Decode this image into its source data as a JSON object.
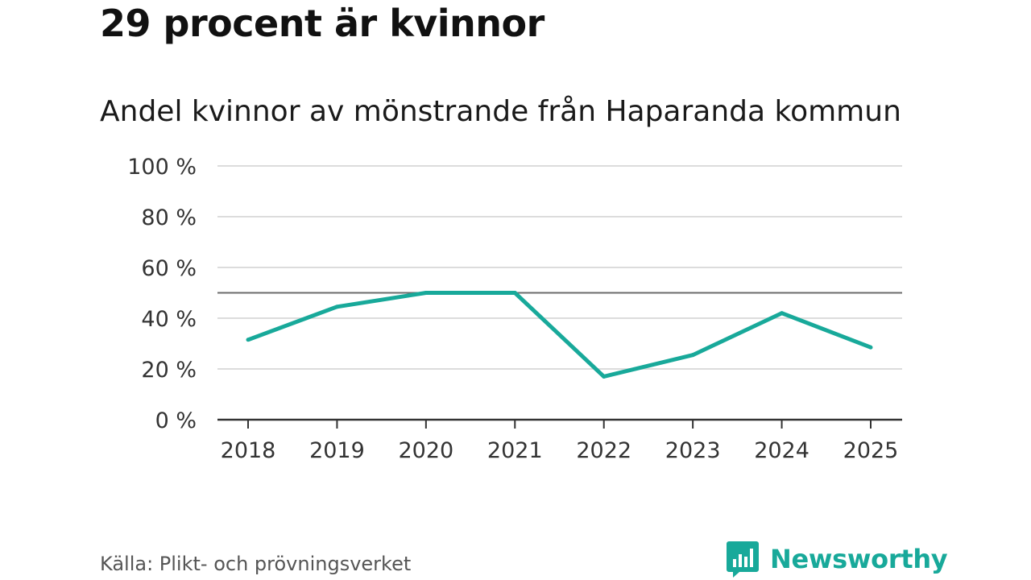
{
  "header": {
    "title": "29 procent är kvinnor",
    "subtitle": "Andel kvinnor av mönstrande från Haparanda kommun"
  },
  "chart_data": {
    "type": "line",
    "x": [
      "2018",
      "2019",
      "2020",
      "2021",
      "2022",
      "2023",
      "2024",
      "2025"
    ],
    "series": [
      {
        "values": [
          31.5,
          44.5,
          50,
          50,
          17,
          25.5,
          42,
          28.5
        ],
        "color": "#18A99A"
      }
    ],
    "reference_line": {
      "value": 50,
      "color": "#6b6b6b"
    },
    "ylim": [
      0,
      100
    ],
    "yticks": [
      0,
      20,
      40,
      60,
      80,
      100
    ],
    "ytick_labels": [
      "0 %",
      "20 %",
      "40 %",
      "60 %",
      "80 %",
      "100 %"
    ],
    "grid": true,
    "xlabel": "",
    "ylabel": ""
  },
  "footer": {
    "source": "Källa: Plikt- och prövningsverket",
    "brand": "Newsworthy",
    "logo_icon": "bar-chart-speech-bubble-icon",
    "brand_color": "#18A99A"
  }
}
